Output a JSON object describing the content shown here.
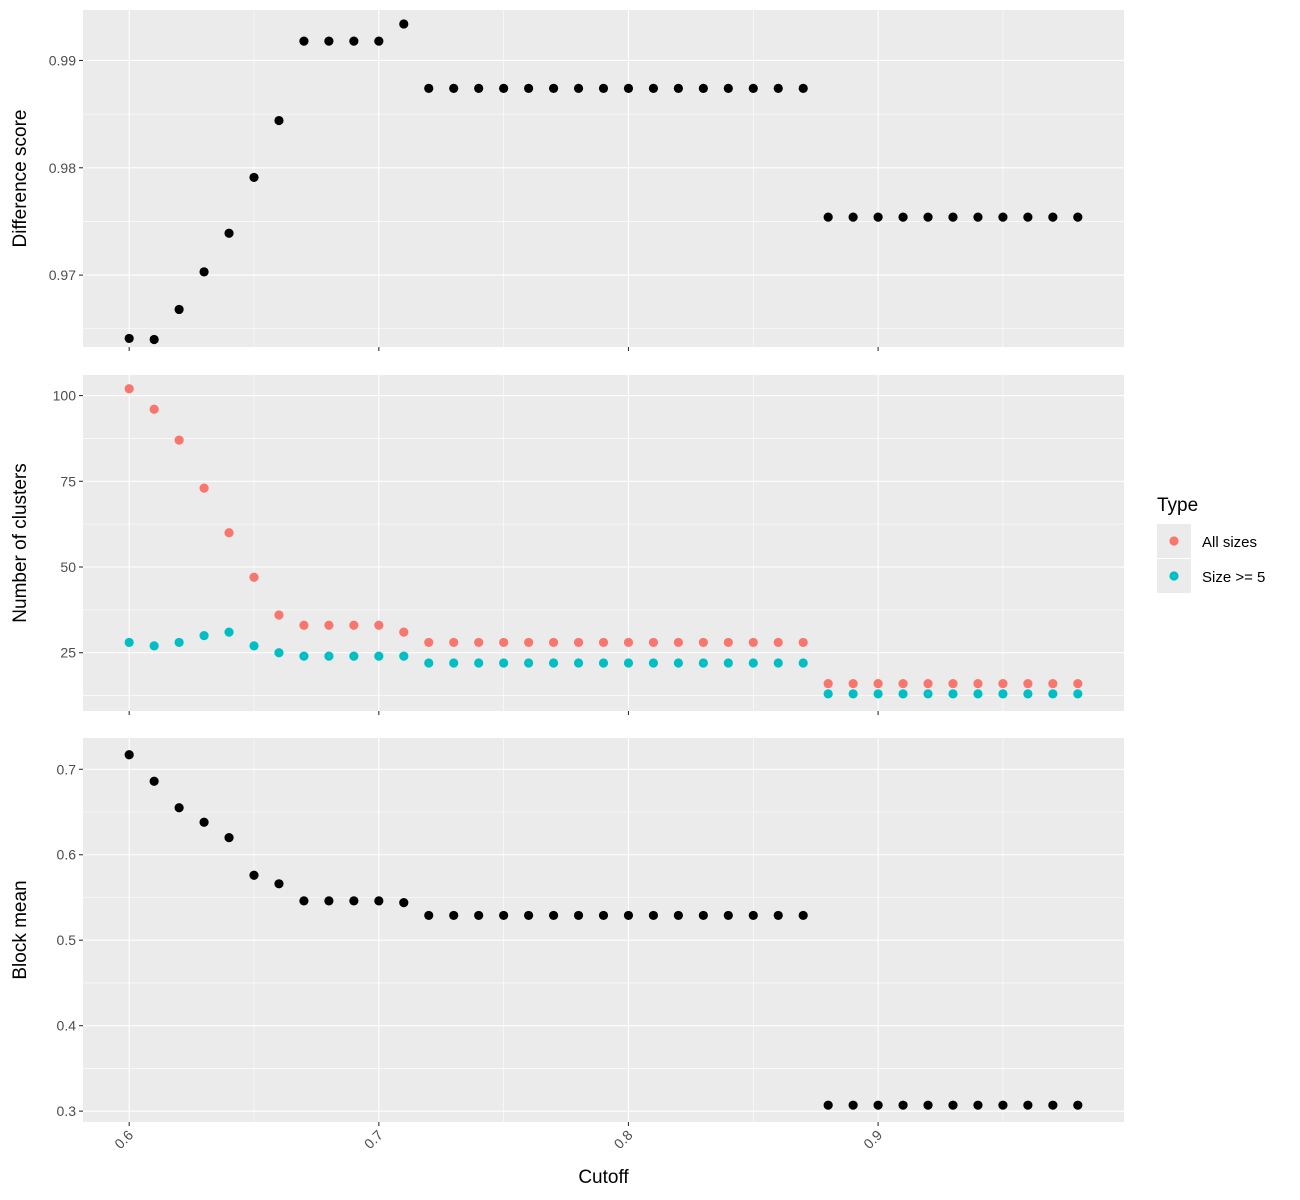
{
  "chart_data": {
    "type": "scatter",
    "xlabel": "Cutoff",
    "x_ticks": [
      0.6,
      0.7,
      0.8,
      0.9
    ],
    "x_tick_labels": [
      "0.6",
      "0.7",
      "0.8",
      "0.9"
    ],
    "xlim": [
      0.5815,
      0.9985
    ],
    "x": [
      0.6,
      0.61,
      0.62,
      0.63,
      0.64,
      0.65,
      0.66,
      0.67,
      0.68,
      0.69,
      0.7,
      0.71,
      0.72,
      0.73,
      0.74,
      0.75,
      0.76,
      0.77,
      0.78,
      0.79,
      0.8,
      0.81,
      0.82,
      0.83,
      0.84,
      0.85,
      0.86,
      0.87,
      0.88,
      0.89,
      0.9,
      0.91,
      0.92,
      0.93,
      0.94,
      0.95,
      0.96,
      0.97,
      0.98
    ],
    "grid": true,
    "legend": {
      "title": "Type",
      "placement": "right",
      "entries": [
        {
          "label": "All sizes",
          "color": "#F8766D"
        },
        {
          "label": "Size >= 5",
          "color": "#00BFC4"
        }
      ]
    },
    "panels": [
      {
        "ylabel": "Difference score",
        "y_ticks": [
          0.97,
          0.98,
          0.99
        ],
        "y_tick_labels": [
          "0.97",
          "0.98",
          "0.99"
        ],
        "ylim": [
          0.9633,
          0.9947
        ],
        "series": [
          {
            "color": "#000000",
            "values": [
              0.9641,
              0.964,
              0.9668,
              0.9703,
              0.9739,
              0.9791,
              0.9844,
              0.9918,
              0.9918,
              0.9918,
              0.9918,
              0.9934,
              0.9874,
              0.9874,
              0.9874,
              0.9874,
              0.9874,
              0.9874,
              0.9874,
              0.9874,
              0.9874,
              0.9874,
              0.9874,
              0.9874,
              0.9874,
              0.9874,
              0.9874,
              0.9874,
              0.9754,
              0.9754,
              0.9754,
              0.9754,
              0.9754,
              0.9754,
              0.9754,
              0.9754,
              0.9754,
              0.9754,
              0.9754
            ]
          }
        ]
      },
      {
        "ylabel": "Number of clusters",
        "y_ticks": [
          25,
          50,
          75,
          100
        ],
        "y_tick_labels": [
          "25",
          "50",
          "75",
          "100"
        ],
        "ylim": [
          8.0,
          106.0
        ],
        "series": [
          {
            "name": "All sizes",
            "color": "#F8766D",
            "values": [
              102,
              96,
              87,
              73,
              60,
              47,
              36,
              33,
              33,
              33,
              33,
              31,
              28,
              28,
              28,
              28,
              28,
              28,
              28,
              28,
              28,
              28,
              28,
              28,
              28,
              28,
              28,
              28,
              16,
              16,
              16,
              16,
              16,
              16,
              16,
              16,
              16,
              16,
              16
            ]
          },
          {
            "name": "Size >= 5",
            "color": "#00BFC4",
            "values": [
              28,
              27,
              28,
              30,
              31,
              27,
              25,
              24,
              24,
              24,
              24,
              24,
              22,
              22,
              22,
              22,
              22,
              22,
              22,
              22,
              22,
              22,
              22,
              22,
              22,
              22,
              22,
              22,
              13,
              13,
              13,
              13,
              13,
              13,
              13,
              13,
              13,
              13,
              13
            ]
          }
        ]
      },
      {
        "ylabel": "Block mean",
        "y_ticks": [
          0.3,
          0.4,
          0.5,
          0.6,
          0.7
        ],
        "y_tick_labels": [
          "0.3",
          "0.4",
          "0.5",
          "0.6",
          "0.7"
        ],
        "ylim": [
          0.2873,
          0.7366
        ],
        "series": [
          {
            "color": "#000000",
            "values": [
              0.717,
              0.686,
              0.655,
              0.638,
              0.62,
              0.576,
              0.566,
              0.546,
              0.546,
              0.546,
              0.546,
              0.544,
              0.529,
              0.529,
              0.529,
              0.529,
              0.529,
              0.529,
              0.529,
              0.529,
              0.529,
              0.529,
              0.529,
              0.529,
              0.529,
              0.529,
              0.529,
              0.529,
              0.307,
              0.307,
              0.307,
              0.307,
              0.307,
              0.307,
              0.307,
              0.307,
              0.307,
              0.307,
              0.307
            ]
          }
        ]
      }
    ]
  }
}
